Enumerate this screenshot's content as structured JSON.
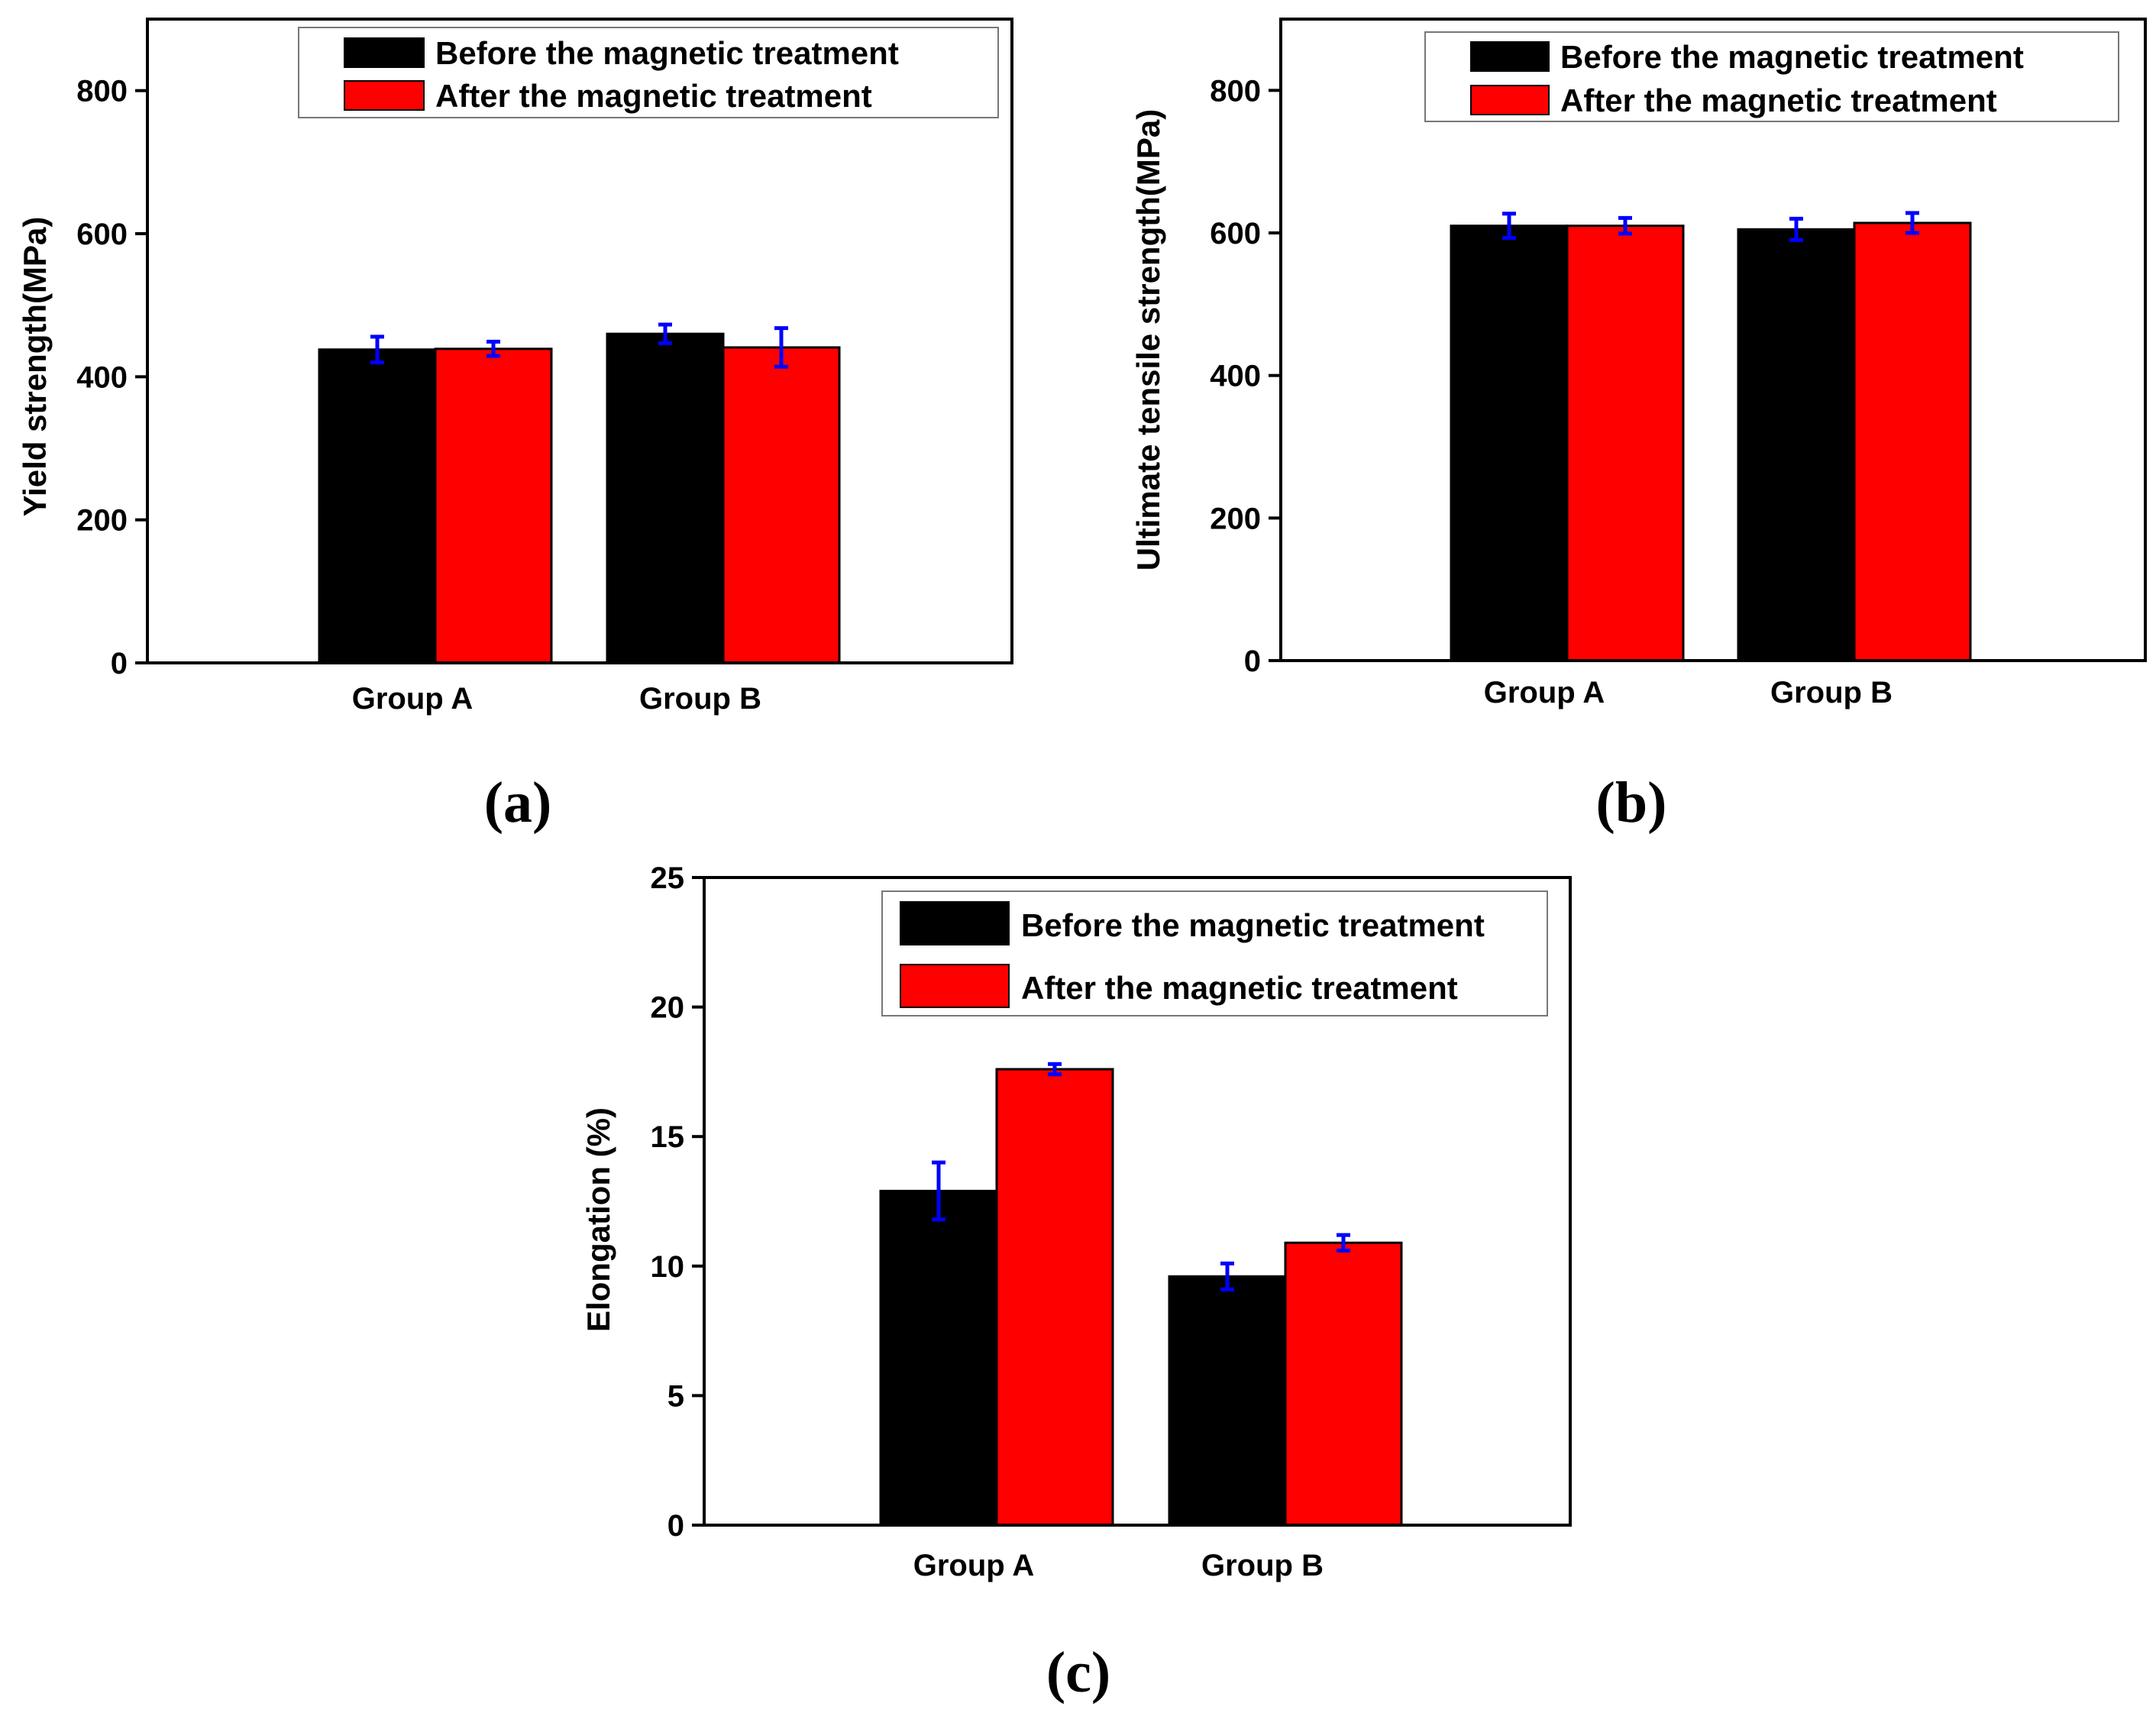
{
  "legend": {
    "before": "Before the magnetic treatment",
    "after": "After the magnetic treatment"
  },
  "colors": {
    "before": "#000000",
    "after": "#ff0000",
    "error_bar": "#0000ff"
  },
  "chart_data": [
    {
      "id": "a",
      "type": "bar",
      "panel_label": "(a)",
      "categories": [
        "Group A",
        "Group B"
      ],
      "series": [
        {
          "name": "Before the magnetic treatment",
          "values": [
            438,
            460
          ],
          "errors": [
            18,
            13
          ]
        },
        {
          "name": "After the magnetic treatment",
          "values": [
            439,
            441
          ],
          "errors": [
            10,
            27
          ]
        }
      ],
      "xlabel": "",
      "ylabel": "Yield strength(MPa)",
      "ylim": [
        0,
        900
      ],
      "yticks": [
        0,
        200,
        400,
        600,
        800
      ],
      "legend_position": "top-right"
    },
    {
      "id": "b",
      "type": "bar",
      "panel_label": "(b)",
      "categories": [
        "Group A",
        "Group B"
      ],
      "series": [
        {
          "name": "Before the magnetic treatment",
          "values": [
            610,
            605
          ],
          "errors": [
            17,
            15
          ]
        },
        {
          "name": "After the magnetic treatment",
          "values": [
            610,
            614
          ],
          "errors": [
            11,
            14
          ]
        }
      ],
      "xlabel": "",
      "ylabel": "Ultimate tensile strength(MPa)",
      "ylim": [
        0,
        900
      ],
      "yticks": [
        0,
        200,
        400,
        600,
        800
      ],
      "legend_position": "top-right"
    },
    {
      "id": "c",
      "type": "bar",
      "panel_label": "(c)",
      "categories": [
        "Group A",
        "Group B"
      ],
      "series": [
        {
          "name": "Before the magnetic treatment",
          "values": [
            12.9,
            9.6
          ],
          "errors": [
            1.1,
            0.5
          ]
        },
        {
          "name": "After the magnetic treatment",
          "values": [
            17.6,
            10.9
          ],
          "errors": [
            0.2,
            0.3
          ]
        }
      ],
      "xlabel": "",
      "ylabel": "Elongation (%)",
      "ylim": [
        0,
        25
      ],
      "yticks": [
        0,
        5,
        10,
        15,
        20,
        25
      ],
      "legend_position": "top-right"
    }
  ]
}
